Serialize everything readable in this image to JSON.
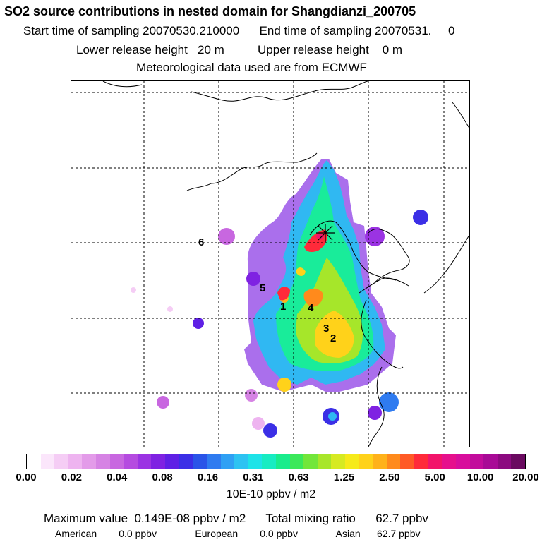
{
  "header": {
    "title": "SO2 source contributions in nested domain for Shangdianzi_200705",
    "line2": "Start time of sampling 20070530.210000      End time of sampling 20070531.     0",
    "line3": "Lower release height   20 m          Upper release height    0 m",
    "line4": "Meteorological data used are from ECMWF"
  },
  "map": {
    "labels": [
      "6",
      "5",
      "1",
      "4",
      "3",
      "2"
    ]
  },
  "colorbar": {
    "colors": [
      "#ffffff",
      "#fbe6fb",
      "#f5cdf5",
      "#eeb4f0",
      "#e39be9",
      "#d683e4",
      "#c867e0",
      "#b54be0",
      "#9b33e3",
      "#7f22e2",
      "#5f20e5",
      "#3b2fe6",
      "#2a54e8",
      "#2f7bf0",
      "#2fa0f4",
      "#2dc3f2",
      "#1ee3e8",
      "#17ecc2",
      "#19ec8c",
      "#3be85a",
      "#72e63a",
      "#a8e62a",
      "#d6ea22",
      "#f6ea1a",
      "#ffd21a",
      "#ffb21a",
      "#ff8a1c",
      "#ff5a26",
      "#ff2a3a",
      "#f2146a",
      "#e6108c",
      "#d80e9c",
      "#c20c9c",
      "#a80a96",
      "#8c0a80",
      "#6a0a60"
    ],
    "tick_labels": [
      "0.00",
      "0.02",
      "0.04",
      "0.08",
      "0.16",
      "0.31",
      "0.63",
      "1.25",
      "2.50",
      "5.00",
      "10.00",
      "20.00"
    ],
    "unit": "10E-10 ppbv / m2"
  },
  "stats": {
    "line1": "Maximum value  0.149E-08 ppbv / m2      Total mixing ratio      62.7 ppbv",
    "line2": "American        0.0 ppbv              European        0.0 ppbv              Asian      62.7 ppbv"
  }
}
